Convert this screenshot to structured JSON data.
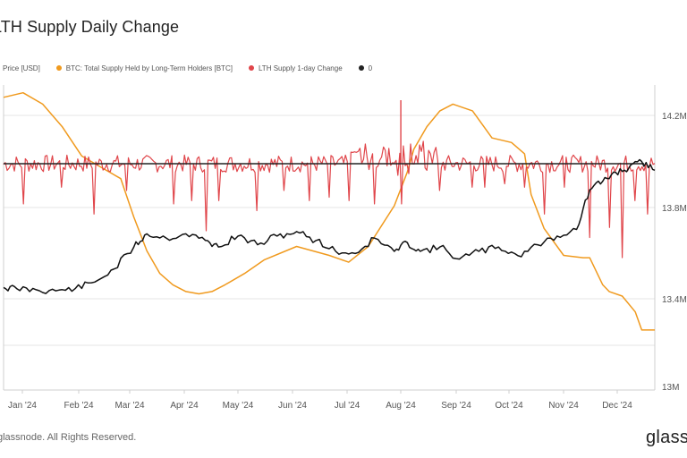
{
  "title": "LTH Supply Daily Change",
  "legend": [
    {
      "label": "Price [USD]",
      "color": "#111111"
    },
    {
      "label": "BTC: Total Supply Held by Long-Term Holders [BTC]",
      "color": "#f09a1e"
    },
    {
      "label": "LTH Supply 1-day Change",
      "color": "#e0454a"
    },
    {
      "label": "0",
      "color": "#222222"
    }
  ],
  "footer": "glassnode. All Rights Reserved.",
  "brand": "glass",
  "chart_data": {
    "type": "line",
    "x_ticks": [
      "Jan '24",
      "Feb '24",
      "Mar '24",
      "Apr '24",
      "May '24",
      "Jun '24",
      "Jul '24",
      "Aug '24",
      "Sep '24",
      "Oct '24",
      "Nov '24",
      "Dec '24"
    ],
    "y_right_ticks": [
      "14.2M",
      "13.8M",
      "13.4M",
      "13M"
    ],
    "y_right_range": [
      13000000,
      14400000
    ],
    "grid": true,
    "series": [
      {
        "name": "BTC: Total Supply Held by Long-Term Holders [BTC]",
        "color": "#f09a1e",
        "axis": "right",
        "t": [
          0,
          0.03,
          0.06,
          0.09,
          0.12,
          0.15,
          0.18,
          0.2,
          0.22,
          0.24,
          0.26,
          0.28,
          0.3,
          0.32,
          0.34,
          0.37,
          0.4,
          0.45,
          0.5,
          0.53,
          0.56,
          0.6,
          0.62,
          0.63,
          0.65,
          0.67,
          0.69,
          0.72,
          0.75,
          0.78,
          0.8,
          0.81,
          0.83,
          0.86,
          0.89,
          0.9,
          0.92,
          0.93,
          0.95,
          0.97,
          0.98,
          1.0
        ],
        "values": [
          14.28,
          14.3,
          14.25,
          14.15,
          14.02,
          13.97,
          13.92,
          13.75,
          13.6,
          13.5,
          13.45,
          13.42,
          13.41,
          13.42,
          13.45,
          13.5,
          13.56,
          13.62,
          13.58,
          13.55,
          13.62,
          13.8,
          13.95,
          14.05,
          14.15,
          14.22,
          14.25,
          14.22,
          14.1,
          14.08,
          14.03,
          13.85,
          13.7,
          13.58,
          13.57,
          13.57,
          13.45,
          13.42,
          13.4,
          13.33,
          13.25,
          13.25
        ]
      },
      {
        "name": "Price [USD]",
        "color": "#111111",
        "axis": "left",
        "t": [
          0,
          0.02,
          0.05,
          0.08,
          0.11,
          0.14,
          0.17,
          0.2,
          0.22,
          0.25,
          0.28,
          0.31,
          0.33,
          0.36,
          0.39,
          0.42,
          0.45,
          0.48,
          0.51,
          0.54,
          0.57,
          0.6,
          0.62,
          0.64,
          0.67,
          0.7,
          0.73,
          0.76,
          0.79,
          0.82,
          0.85,
          0.88,
          0.9,
          0.92,
          0.94,
          0.96,
          0.98,
          1.0
        ],
        "values": [
          43500,
          43000,
          42500,
          42000,
          43000,
          46000,
          52000,
          62000,
          68000,
          66000,
          68000,
          65000,
          62000,
          67000,
          63000,
          67000,
          69000,
          65000,
          60000,
          59000,
          66000,
          60000,
          64000,
          60000,
          62000,
          56500,
          60000,
          62000,
          58000,
          63000,
          67000,
          70000,
          88000,
          92000,
          96000,
          98000,
          101000,
          97000
        ]
      },
      {
        "name": "LTH Supply 1-day Change",
        "color": "#e0454a",
        "axis": "right-change",
        "spikes_t": [
          0.03,
          0.09,
          0.14,
          0.19,
          0.26,
          0.29,
          0.31,
          0.33,
          0.39,
          0.43,
          0.47,
          0.5,
          0.53,
          0.57,
          0.61,
          0.67,
          0.72,
          0.74,
          0.77,
          0.8,
          0.83,
          0.86,
          0.9,
          0.93,
          0.95,
          0.97,
          0.99
        ],
        "spikes_values": [
          -60000,
          -35000,
          -75000,
          -40000,
          -60000,
          -55000,
          -100000,
          -55000,
          -70000,
          -40000,
          -55000,
          -50000,
          -55000,
          -60000,
          -60000,
          -40000,
          -35000,
          -35000,
          -30000,
          -35000,
          -75000,
          -35000,
          -110000,
          -95000,
          -140000,
          -55000,
          -75000
        ]
      },
      {
        "name": "0",
        "color": "#222222",
        "axis": "right-change",
        "values": [
          0,
          0
        ]
      }
    ]
  }
}
